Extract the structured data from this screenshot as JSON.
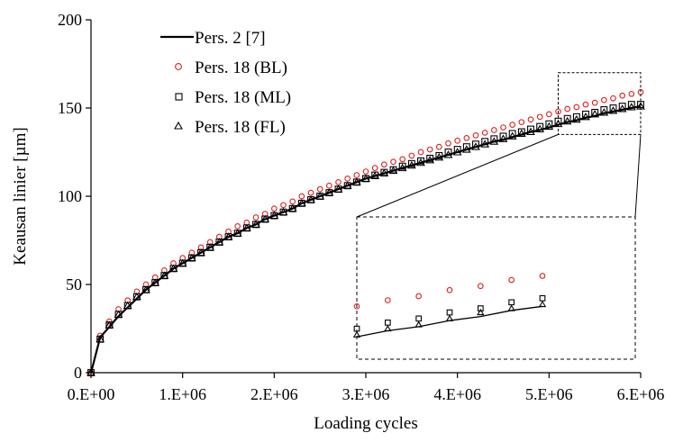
{
  "chart_data": {
    "type": "scatter",
    "xlabel": "Loading cycles",
    "ylabel": "Keausan linier  [µm]",
    "xlim": [
      0,
      6000000
    ],
    "ylim": [
      0,
      200
    ],
    "x_ticks": [
      {
        "value": 0,
        "label": "0.E+00"
      },
      {
        "value": 1000000,
        "label": "1.E+06"
      },
      {
        "value": 2000000,
        "label": "2.E+06"
      },
      {
        "value": 3000000,
        "label": "3.E+06"
      },
      {
        "value": 4000000,
        "label": "4.E+06"
      },
      {
        "value": 5000000,
        "label": "5.E+06"
      },
      {
        "value": 6000000,
        "label": "6.E+06"
      }
    ],
    "y_ticks": [
      {
        "value": 0,
        "label": "0"
      },
      {
        "value": 50,
        "label": "50"
      },
      {
        "value": 100,
        "label": "100"
      },
      {
        "value": 150,
        "label": "150"
      },
      {
        "value": 200,
        "label": "200"
      }
    ],
    "grid": false,
    "legend_position": "top-left",
    "x": [
      0,
      100000,
      200000,
      300000,
      400000,
      500000,
      600000,
      700000,
      800000,
      900000,
      1000000,
      1100000,
      1200000,
      1300000,
      1400000,
      1500000,
      1600000,
      1700000,
      1800000,
      1900000,
      2000000,
      2100000,
      2200000,
      2300000,
      2400000,
      2500000,
      2600000,
      2700000,
      2800000,
      2900000,
      3000000,
      3100000,
      3200000,
      3300000,
      3400000,
      3500000,
      3600000,
      3700000,
      3800000,
      3900000,
      4000000,
      4100000,
      4200000,
      4300000,
      4400000,
      4500000,
      4600000,
      4700000,
      4800000,
      4900000,
      5000000,
      5100000,
      5200000,
      5300000,
      5400000,
      5500000,
      5600000,
      5700000,
      5800000,
      5900000,
      6000000
    ],
    "series": [
      {
        "name": "Pers. 2 [7]",
        "style": "line",
        "color": "#000000",
        "values": [
          0,
          20,
          26,
          32,
          37,
          42,
          47,
          51,
          55,
          59,
          62,
          65,
          68,
          71,
          74,
          77,
          79,
          82,
          84,
          87,
          89,
          91,
          93,
          96,
          98,
          100,
          102,
          104,
          106,
          108,
          110,
          111.5,
          113,
          114.5,
          116,
          117.5,
          119,
          120.5,
          122,
          123.5,
          125,
          126.5,
          128,
          129.5,
          131,
          132,
          133.5,
          135,
          136.5,
          137.5,
          139,
          140.5,
          142,
          143,
          144.5,
          145.5,
          147,
          148,
          149,
          150,
          151
        ]
      },
      {
        "name": "Pers. 18 (BL)",
        "style": "marker",
        "marker": "circle",
        "color": "#e0201e",
        "values": [
          0,
          21,
          29,
          36,
          41,
          46,
          50,
          54,
          58,
          62,
          65,
          68,
          71,
          74,
          77,
          80,
          83,
          85,
          88,
          90,
          93,
          95,
          97,
          100,
          102,
          104,
          106,
          108,
          110,
          112,
          114,
          116,
          118,
          119.5,
          121,
          123,
          125,
          126.5,
          128,
          130,
          131.5,
          133,
          134.5,
          136,
          137.5,
          139,
          140.5,
          142,
          143.5,
          145,
          146.5,
          148,
          149.5,
          150.5,
          152,
          153,
          154.5,
          155.5,
          157,
          158,
          159
        ]
      },
      {
        "name": "Pers. 18 (ML)",
        "style": "marker",
        "marker": "square",
        "color": "#000000",
        "values": [
          0,
          19,
          27,
          33,
          38,
          43,
          47,
          51,
          55,
          59,
          62,
          65,
          68,
          71,
          74,
          77,
          79,
          82,
          84,
          87,
          89,
          91,
          93,
          96,
          98,
          100,
          102,
          104,
          106,
          108,
          110,
          112,
          113.5,
          115,
          117,
          118.5,
          120,
          121.5,
          123,
          125,
          126.5,
          128,
          129.5,
          131,
          132.5,
          134,
          135.5,
          136.5,
          138,
          139.5,
          141,
          142.5,
          144,
          145,
          146.5,
          147.5,
          149,
          150,
          151,
          152,
          152
        ]
      },
      {
        "name": "Pers. 18 (FL)",
        "style": "marker",
        "marker": "triangle",
        "color": "#000000",
        "values": [
          0,
          19,
          27,
          33,
          38,
          43,
          47,
          51,
          55,
          59,
          62,
          65,
          68,
          71,
          74,
          77,
          79,
          82,
          84,
          87,
          89,
          91,
          93,
          96,
          98,
          100,
          102,
          104,
          106,
          108,
          110,
          111.5,
          113,
          114.5,
          116,
          117.5,
          119,
          120.5,
          122,
          123.5,
          125,
          126.5,
          128,
          129.5,
          131,
          132.5,
          134,
          135.5,
          136.5,
          138,
          139.5,
          141,
          142.5,
          143.5,
          145,
          146.5,
          147.5,
          148.5,
          149.5,
          150.5,
          151
        ]
      }
    ],
    "inset": {
      "type": "zoom",
      "source_xlim": [
        5100000,
        6000000
      ],
      "source_ylim": [
        135,
        170
      ],
      "placement": "lower-right"
    }
  }
}
